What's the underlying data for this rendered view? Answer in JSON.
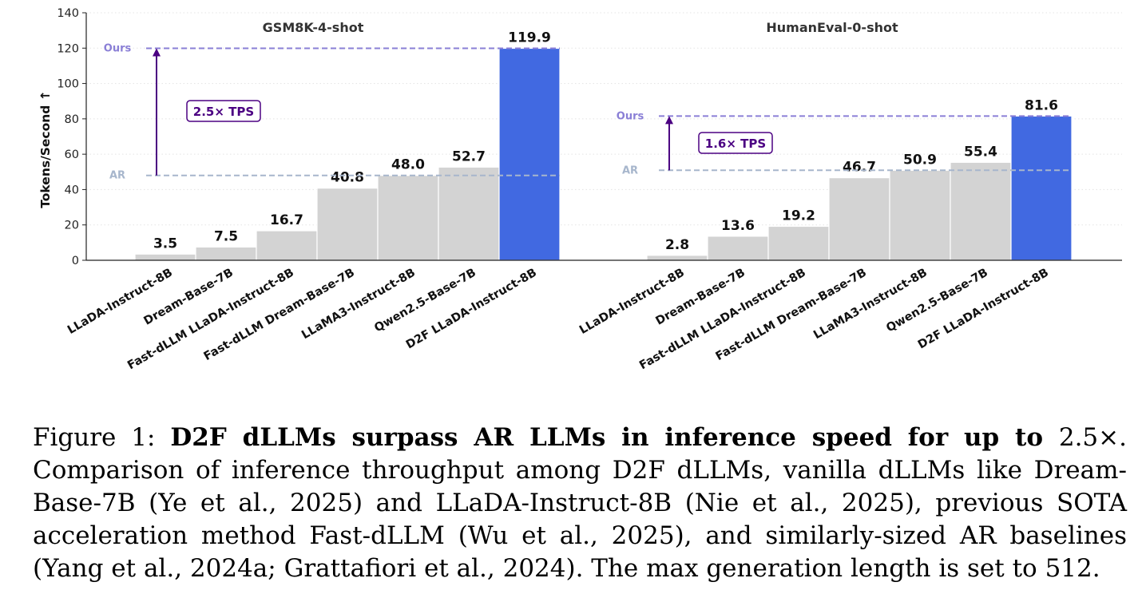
{
  "chart_data": [
    {
      "type": "bar",
      "title": "GSM8K-4-shot",
      "ylabel": "Tokens/Second ↑",
      "ylim": [
        0,
        140
      ],
      "yticks": [
        0,
        20,
        40,
        60,
        80,
        100,
        120,
        140
      ],
      "categories": [
        "LLaDA-Instruct-8B",
        "Dream-Base-7B",
        "Fast-dLLM LLaDA-Instruct-8B",
        "Fast-dLLM Dream-Base-7B",
        "LLaMA3-Instruct-8B",
        "Qwen2.5-Base-7B",
        "D2F LLaDA-Instruct-8B"
      ],
      "values": [
        3.5,
        7.5,
        16.7,
        40.8,
        48.0,
        52.7,
        119.9
      ],
      "value_labels": [
        "3.5",
        "7.5",
        "16.7",
        "40.8",
        "48.0",
        "52.7",
        "119.9"
      ],
      "highlight_index": 6,
      "reference_lines": [
        {
          "label": "Ours",
          "value": 119.9
        },
        {
          "label": "AR",
          "value": 48.0
        }
      ],
      "annotation": "2.5× TPS",
      "grid": "horizontal dotted"
    },
    {
      "type": "bar",
      "title": "HumanEval-0-shot",
      "ylim": [
        0,
        140
      ],
      "categories": [
        "LLaDA-Instruct-8B",
        "Dream-Base-7B",
        "Fast-dLLM LLaDA-Instruct-8B",
        "Fast-dLLM Dream-Base-7B",
        "LLaMA3-Instruct-8B",
        "Qwen2.5-Base-7B",
        "D2F LLaDA-Instruct-8B"
      ],
      "values": [
        2.8,
        13.6,
        19.2,
        46.7,
        50.9,
        55.4,
        81.6
      ],
      "value_labels": [
        "2.8",
        "13.6",
        "19.2",
        "46.7",
        "50.9",
        "55.4",
        "81.6"
      ],
      "highlight_index": 6,
      "reference_lines": [
        {
          "label": "Ours",
          "value": 81.6
        },
        {
          "label": "AR",
          "value": 50.9
        }
      ],
      "annotation": "1.6× TPS",
      "grid": "horizontal dotted"
    }
  ],
  "colors": {
    "bar": "#d3d3d3",
    "highlight": "#4169e1",
    "ours": "#8a7fd6",
    "ar": "#a7b6cc",
    "arrow": "#4b0082"
  },
  "caption": {
    "label": "Figure 1: ",
    "bold": "D2F dLLMs surpass AR LLMs in inference speed for up to ",
    "factor": "2.5×.",
    "text": " Comparison of inference throughput among D2F dLLMs, vanilla dLLMs like Dream-Base-7B (Ye et al., 2025) and LLaDA-Instruct-8B (Nie et al., 2025), previous SOTA acceleration method Fast-dLLM (Wu et al., 2025), and similarly-sized AR baselines (Yang et al., 2024a; Grattafiori et al., 2024). The max generation length is set to 512."
  }
}
